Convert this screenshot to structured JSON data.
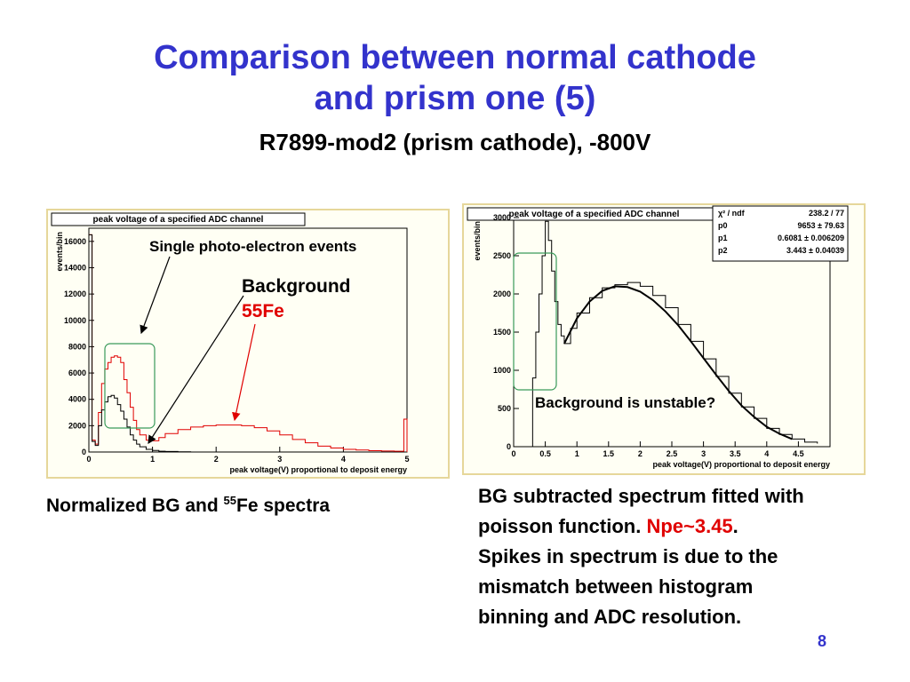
{
  "slide": {
    "title_line1": "Comparison between normal cathode",
    "title_line2": "and prism one (5)",
    "subtitle": "R7899-mod2 (prism cathode), -800V",
    "page_number": "8"
  },
  "left_panel": {
    "caption_prefix": "Normalized BG and ",
    "caption_sup": "55",
    "caption_suffix": "Fe spectra",
    "annotation_spe": "Single photo-electron events",
    "annotation_bg": "Background",
    "annotation_fe": "55Fe"
  },
  "right_panel": {
    "annotation_bg": "Background is unstable?",
    "caption_line1": "BG subtracted spectrum fitted with",
    "caption_line2_a": "poisson function. ",
    "caption_line2_npe": "Npe~3.45",
    "caption_line2_b": ".",
    "caption_line3": "Spikes in spectrum is due to the",
    "caption_line4": "mismatch between histogram",
    "caption_line5": "binning and ADC resolution.",
    "stats": {
      "rows": [
        {
          "label": "χ² / ndf",
          "value": "238.2 / 77"
        },
        {
          "label": "p0",
          "value": "9653 ± 79.63"
        },
        {
          "label": "p1",
          "value": "0.6081 ± 0.006209"
        },
        {
          "label": "p2",
          "value": "3.443 ± 0.04039"
        }
      ]
    }
  },
  "colors": {
    "title": "#3333cc",
    "red": "#e00000",
    "green_box": "#3a9a5a",
    "panel_bg": "#fffff4"
  },
  "chart_data": [
    {
      "type": "line",
      "title": "peak voltage of a specified ADC channel",
      "xlabel": "peak voltage(V) proportional to deposit energy",
      "ylabel": "events/bin",
      "xlim": [
        0,
        5
      ],
      "ylim": [
        0,
        17000
      ],
      "x_ticks": [
        "0",
        "1",
        "2",
        "3",
        "4",
        "5"
      ],
      "y_ticks": [
        "0",
        "2000",
        "4000",
        "6000",
        "8000",
        "10000",
        "12000",
        "14000",
        "16000"
      ],
      "series": [
        {
          "name": "55Fe",
          "color": "#e00000",
          "x": [
            0.0,
            0.05,
            0.1,
            0.15,
            0.2,
            0.25,
            0.3,
            0.35,
            0.4,
            0.45,
            0.5,
            0.55,
            0.6,
            0.65,
            0.7,
            0.75,
            0.8,
            0.9,
            1.0,
            1.1,
            1.2,
            1.4,
            1.6,
            1.8,
            2.0,
            2.2,
            2.4,
            2.6,
            2.8,
            3.0,
            3.2,
            3.4,
            3.6,
            3.8,
            4.0,
            4.2,
            4.4,
            4.6,
            4.8,
            4.95,
            5.0
          ],
          "values": [
            16500,
            900,
            600,
            3000,
            5200,
            6300,
            6800,
            7200,
            7300,
            7200,
            6800,
            5500,
            4500,
            3400,
            2400,
            1700,
            1300,
            900,
            850,
            1100,
            1400,
            1700,
            1900,
            2000,
            2050,
            2050,
            2000,
            1850,
            1600,
            1300,
            950,
            700,
            450,
            300,
            200,
            150,
            100,
            80,
            60,
            2500,
            0
          ]
        },
        {
          "name": "Background",
          "color": "#000000",
          "x": [
            0.0,
            0.05,
            0.1,
            0.15,
            0.2,
            0.25,
            0.3,
            0.35,
            0.4,
            0.45,
            0.5,
            0.55,
            0.6,
            0.65,
            0.7,
            0.75,
            0.8,
            0.9,
            1.0,
            1.1,
            1.2,
            1.4,
            1.6
          ],
          "values": [
            16500,
            800,
            500,
            2000,
            3200,
            3800,
            4200,
            4300,
            4100,
            3600,
            3100,
            2500,
            1900,
            1300,
            900,
            600,
            400,
            200,
            120,
            60,
            40,
            20,
            10
          ]
        }
      ]
    },
    {
      "type": "line",
      "title": "peak voltage of a specified ADC channel",
      "xlabel": "peak voltage(V) proportional to deposit energy",
      "ylabel": "events/bin",
      "xlim": [
        0,
        5
      ],
      "ylim": [
        0,
        3000
      ],
      "x_ticks": [
        "0",
        "0.5",
        "1",
        "1.5",
        "2",
        "2.5",
        "3",
        "3.5",
        "4",
        "4.5"
      ],
      "y_ticks": [
        "0",
        "500",
        "1000",
        "1500",
        "2000",
        "2500",
        "3000"
      ],
      "series": [
        {
          "name": "BG subtracted",
          "color": "#000000",
          "x": [
            0.25,
            0.3,
            0.35,
            0.4,
            0.45,
            0.5,
            0.55,
            0.6,
            0.65,
            0.7,
            0.75,
            0.8,
            0.9,
            1.0,
            1.2,
            1.4,
            1.6,
            1.8,
            2.0,
            2.2,
            2.4,
            2.6,
            2.8,
            3.0,
            3.2,
            3.4,
            3.6,
            3.8,
            4.0,
            4.2,
            4.4,
            4.6,
            4.8
          ],
          "values": [
            0,
            900,
            1500,
            2000,
            2500,
            2950,
            2700,
            2300,
            1900,
            1600,
            1450,
            1350,
            1550,
            1750,
            1950,
            2080,
            2120,
            2150,
            2100,
            1980,
            1820,
            1600,
            1380,
            1150,
            920,
            700,
            520,
            370,
            240,
            160,
            100,
            60,
            40
          ]
        },
        {
          "name": "Poisson fit",
          "color": "#000000",
          "x": [
            0.8,
            1.0,
            1.2,
            1.4,
            1.6,
            1.8,
            2.0,
            2.2,
            2.4,
            2.6,
            2.8,
            3.0,
            3.2,
            3.4,
            3.6,
            3.8,
            4.0,
            4.2,
            4.4
          ],
          "values": [
            1350,
            1680,
            1900,
            2040,
            2100,
            2090,
            2030,
            1920,
            1770,
            1590,
            1380,
            1160,
            940,
            730,
            540,
            390,
            260,
            170,
            100
          ]
        }
      ]
    }
  ]
}
